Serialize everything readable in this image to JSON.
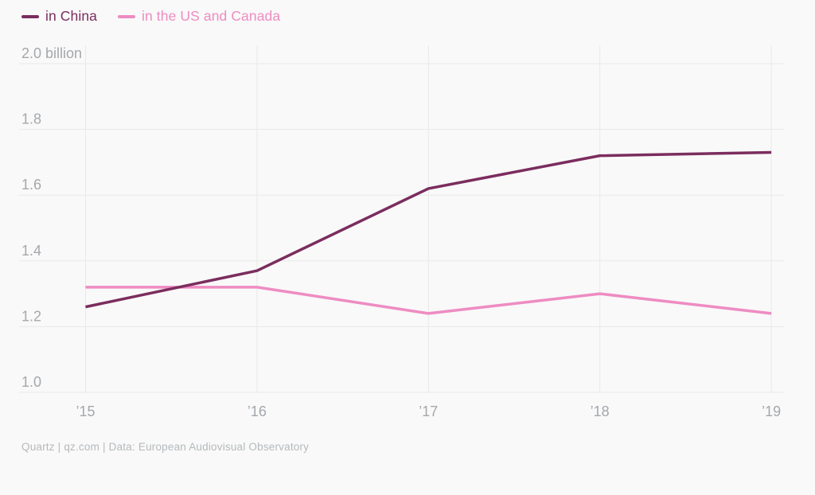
{
  "legend": [
    {
      "label": "in China",
      "color": "#7b2d5e"
    },
    {
      "label": "in the US and Canada",
      "color": "#ee8cc2"
    }
  ],
  "chart_data": {
    "type": "line",
    "x": [
      "’15",
      "’16",
      "’17",
      "’18",
      "’19"
    ],
    "series": [
      {
        "name": "in China",
        "color": "#7b2d5e",
        "values": [
          1.26,
          1.37,
          1.62,
          1.72,
          1.73
        ]
      },
      {
        "name": "in the US and Canada",
        "color": "#ee8cc2",
        "values": [
          1.32,
          1.32,
          1.24,
          1.3,
          1.24
        ]
      }
    ],
    "yticks": [
      1.0,
      1.2,
      1.4,
      1.6,
      1.8,
      2.0
    ],
    "ytick_labels": [
      "1.0",
      "1.2",
      "1.4",
      "1.6",
      "1.8",
      "2.0 billion"
    ],
    "ylim": [
      1.0,
      2.0
    ],
    "unit": "billion",
    "grid": true,
    "legend_position": "top-left"
  },
  "footer": {
    "text": "Quartz | qz.com | Data: European Audiovisual Observatory"
  },
  "colors": {
    "background": "#f9f9f9",
    "gridline": "#e9e9e9",
    "axis_label": "#a4a8ac",
    "footer_text": "#b5b9bc"
  }
}
